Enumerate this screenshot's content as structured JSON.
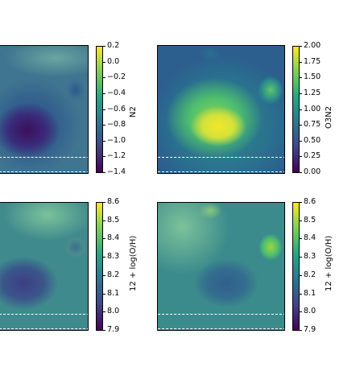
{
  "chart_data": [
    {
      "type": "heatmap",
      "colorbar_label": "N2",
      "cmap": "viridis",
      "range": [
        -1.4,
        0.2
      ],
      "ticks": [
        "0.2",
        "0.0",
        "−0.2",
        "−0.4",
        "−0.6",
        "−0.8",
        "−1.0",
        "−1.2",
        "−1.4"
      ],
      "description_values": "central region low (~-1.2), outskirts higher"
    },
    {
      "type": "heatmap",
      "colorbar_label": "O3N2",
      "cmap": "viridis",
      "range": [
        0.0,
        2.0
      ],
      "ticks": [
        "2.00",
        "1.75",
        "1.50",
        "1.25",
        "1.00",
        "0.75",
        "0.50",
        "0.25",
        "0.00"
      ]
    },
    {
      "type": "heatmap",
      "colorbar_label": "12 + log(O/H)",
      "cmap": "viridis",
      "range": [
        7.9,
        8.6
      ],
      "ticks": [
        "8.6",
        "8.5",
        "8.4",
        "8.3",
        "8.2",
        "8.1",
        "8.0",
        "7.9"
      ]
    },
    {
      "type": "heatmap",
      "colorbar_label": "12 + log(O/H)",
      "cmap": "viridis",
      "range": [
        7.9,
        8.6
      ],
      "ticks": [
        "8.6",
        "8.5",
        "8.4",
        "8.3",
        "8.2",
        "8.1",
        "8.0",
        "7.9"
      ]
    }
  ],
  "colors": {
    "viridis_low": "#440154",
    "viridis_mid": "#21918c",
    "viridis_high": "#fde725"
  }
}
